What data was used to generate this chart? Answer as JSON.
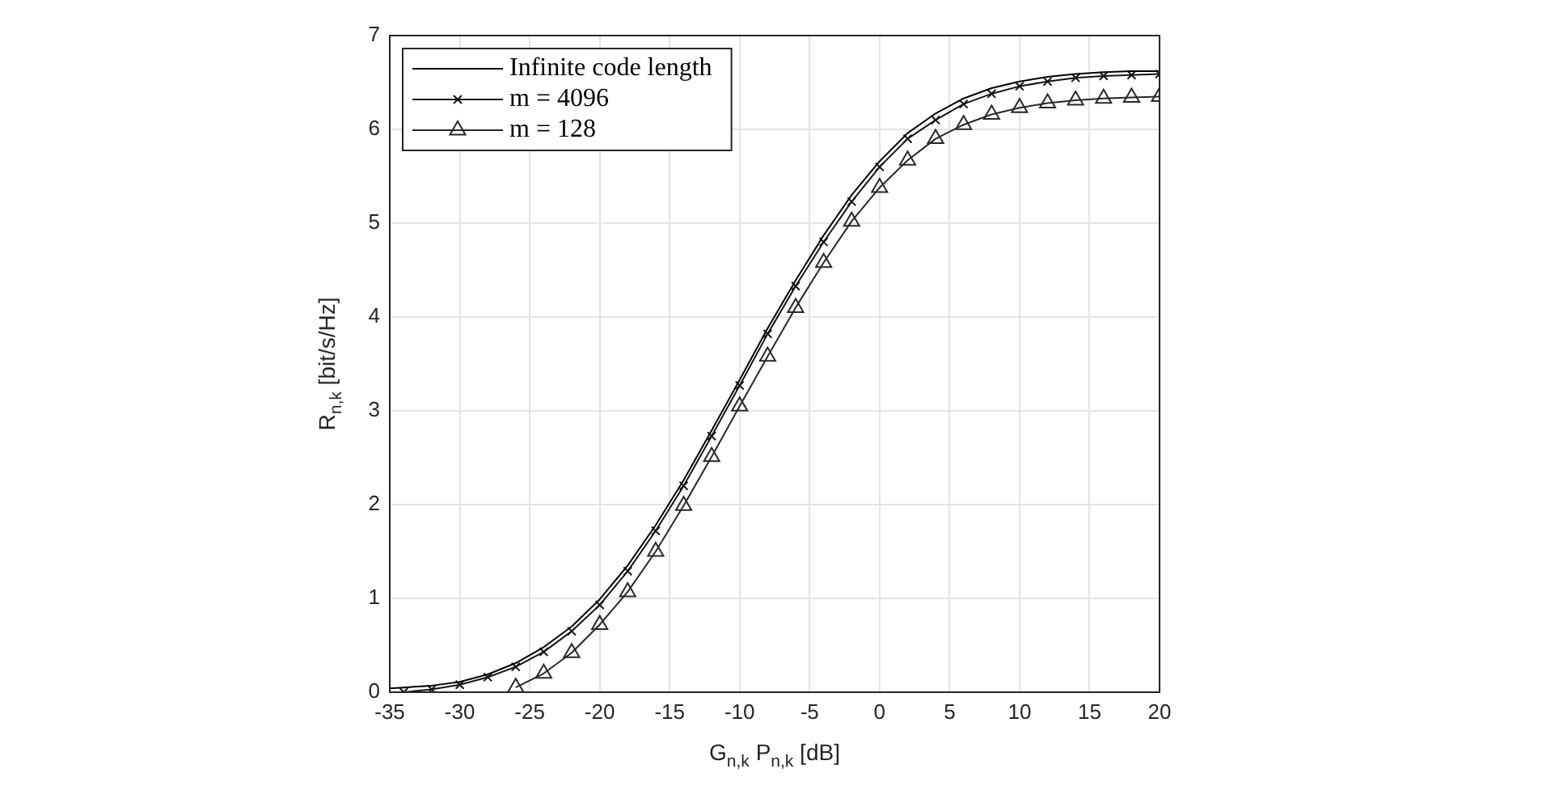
{
  "chart_data": {
    "type": "line",
    "xlabel": "G$_{n,k}$ P$_{n,k}$ [dB]",
    "ylabel": "R$_{n,k}$ [bit/s/Hz]",
    "xlim": [
      -35,
      20
    ],
    "ylim": [
      0,
      7
    ],
    "xticks": [
      -35,
      -30,
      -25,
      -20,
      -15,
      -10,
      -5,
      0,
      5,
      10,
      15,
      20
    ],
    "yticks": [
      0,
      1,
      2,
      3,
      4,
      5,
      6,
      7
    ],
    "grid": true,
    "legend": "top left",
    "line_style": "solid",
    "series": [
      {
        "name": "Infinite code length",
        "color": "#000000",
        "marker": "none",
        "x": [
          -35,
          -34,
          -32,
          -30,
          -28,
          -26,
          -24,
          -22,
          -20,
          -18,
          -16,
          -14,
          -12,
          -10,
          -8,
          -6,
          -4,
          -2,
          0,
          2,
          4,
          6,
          8,
          10,
          12,
          14,
          16,
          18,
          20
        ],
        "values": [
          0.04,
          0.05,
          0.07,
          0.11,
          0.19,
          0.31,
          0.48,
          0.7,
          0.99,
          1.35,
          1.78,
          2.26,
          2.79,
          3.33,
          3.88,
          4.39,
          4.87,
          5.3,
          5.66,
          5.96,
          6.17,
          6.33,
          6.44,
          6.51,
          6.56,
          6.59,
          6.61,
          6.62,
          6.62
        ]
      },
      {
        "name": "m = 4096",
        "color": "#141414",
        "marker": "cross",
        "x": [
          -34,
          -32,
          -30,
          -28,
          -26,
          -24,
          -22,
          -20,
          -18,
          -16,
          -14,
          -12,
          -10,
          -8,
          -6,
          -4,
          -2,
          0,
          2,
          4,
          6,
          8,
          10,
          12,
          14,
          16,
          18,
          20
        ],
        "values": [
          0.0,
          0.03,
          0.08,
          0.16,
          0.27,
          0.43,
          0.65,
          0.93,
          1.29,
          1.72,
          2.2,
          2.73,
          3.27,
          3.82,
          4.33,
          4.8,
          5.23,
          5.6,
          5.9,
          6.1,
          6.27,
          6.38,
          6.46,
          6.51,
          6.55,
          6.57,
          6.58,
          6.59
        ]
      },
      {
        "name": "m = 128",
        "color": "#282828",
        "marker": "triangle",
        "x": [
          -26,
          -24,
          -22,
          -20,
          -18,
          -16,
          -14,
          -12,
          -10,
          -8,
          -6,
          -4,
          -2,
          0,
          2,
          4,
          6,
          8,
          10,
          12,
          14,
          16,
          18,
          20
        ],
        "values": [
          0.05,
          0.2,
          0.42,
          0.72,
          1.07,
          1.5,
          1.99,
          2.51,
          3.05,
          3.58,
          4.1,
          4.58,
          5.02,
          5.38,
          5.67,
          5.9,
          6.05,
          6.16,
          6.23,
          6.28,
          6.31,
          6.33,
          6.34,
          6.35
        ]
      }
    ]
  }
}
